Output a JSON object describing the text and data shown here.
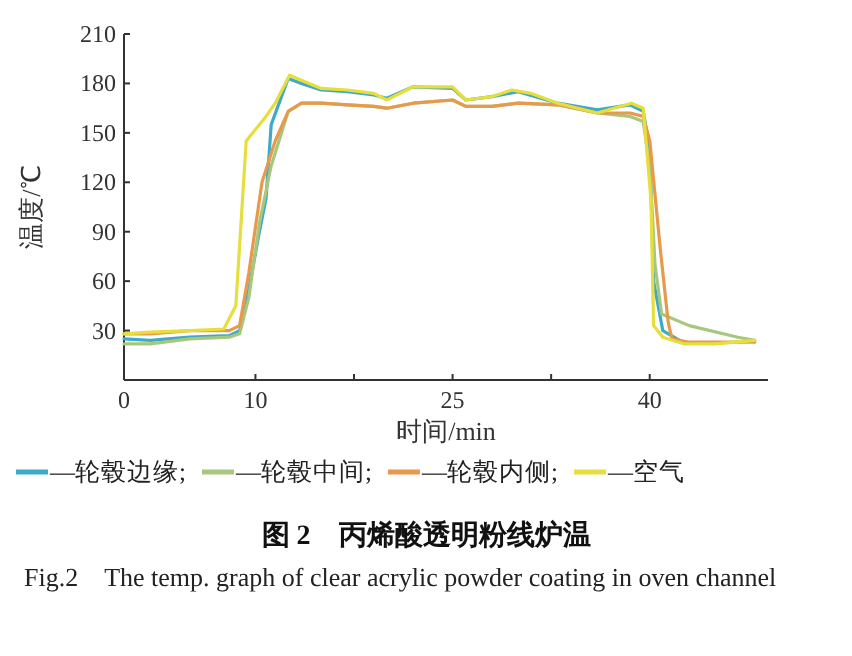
{
  "chart_data": {
    "type": "line",
    "title": "图 2　丙烯酸透明粉线炉温",
    "subtitle": "Fig.2　The temp. graph of clear acrylic powder coating in oven channel",
    "xlabel": "时间/min",
    "ylabel": "温度/℃",
    "xlim": [
      0,
      49
    ],
    "ylim": [
      0,
      210
    ],
    "xticks": [
      0,
      10,
      {
        "value": 17.5,
        "label": null
      },
      25,
      {
        "value": 32.5,
        "label": null
      },
      40
    ],
    "yticks": [
      30,
      60,
      90,
      120,
      150,
      180,
      210
    ],
    "legend": "bottom",
    "series": [
      {
        "name": "—轮毂边缘;",
        "color": "#3fa9c8",
        "x": [
          0,
          2,
          5,
          8,
          8.8,
          9.5,
          10.3,
          10.8,
          11.2,
          12.5,
          13.5,
          15,
          17,
          19,
          20,
          22,
          25,
          26,
          28,
          30,
          33,
          36,
          38.5,
          39.5,
          40,
          40.3,
          41,
          42.5
        ],
        "values": [
          25,
          24,
          26,
          27,
          30,
          55,
          90,
          110,
          155,
          183,
          180,
          176,
          175,
          173,
          171,
          178,
          177,
          170,
          172,
          175,
          168,
          164,
          167,
          163,
          140,
          60,
          30,
          23
        ]
      },
      {
        "name": "—轮毂中间;",
        "color": "#a6c87e",
        "x": [
          0,
          2,
          5,
          8,
          8.8,
          9.5,
          10.3,
          11.2,
          12.5,
          13.5,
          15,
          17,
          19,
          20,
          22,
          25,
          26,
          28,
          30,
          33,
          36,
          38.5,
          39.5,
          40,
          40.4,
          40.9,
          43,
          46.7,
          48
        ],
        "values": [
          22,
          22,
          25,
          26,
          28,
          50,
          95,
          130,
          163,
          168,
          168,
          167,
          166,
          165,
          168,
          170,
          166,
          166,
          168,
          167,
          162,
          160,
          157,
          130,
          70,
          40,
          33,
          26,
          24
        ]
      },
      {
        "name": "—轮毂内侧;",
        "color": "#e89a4c",
        "x": [
          0,
          2,
          5,
          8,
          8.8,
          9.5,
          10.5,
          11.5,
          12.5,
          13.5,
          15,
          17,
          19,
          20,
          22,
          25,
          26,
          28,
          30,
          33,
          36,
          38.5,
          39.5,
          40,
          40.8,
          41.4,
          41.7,
          43,
          48
        ],
        "values": [
          28,
          28,
          30,
          30,
          33,
          65,
          120,
          145,
          163,
          168,
          168,
          167,
          166,
          165,
          168,
          170,
          166,
          166,
          168,
          167,
          162,
          162,
          160,
          145,
          80,
          35,
          25,
          23,
          23
        ]
      },
      {
        "name": "—空气",
        "color": "#e6de3c",
        "x": [
          0,
          2,
          5,
          7.6,
          8.5,
          9.3,
          10.8,
          11.5,
          12.6,
          13.5,
          15,
          17,
          19,
          20,
          22,
          25,
          26,
          28,
          29.5,
          31,
          33,
          36,
          38.6,
          39.5,
          40.1,
          40.3,
          41,
          42.6,
          45,
          48
        ],
        "values": [
          28,
          29,
          30,
          31,
          45,
          145,
          160,
          168,
          185,
          182,
          177,
          176,
          174,
          170,
          178,
          178,
          170,
          172,
          176,
          174,
          168,
          162,
          168,
          165,
          109,
          33,
          26,
          22,
          22,
          24
        ]
      }
    ]
  }
}
